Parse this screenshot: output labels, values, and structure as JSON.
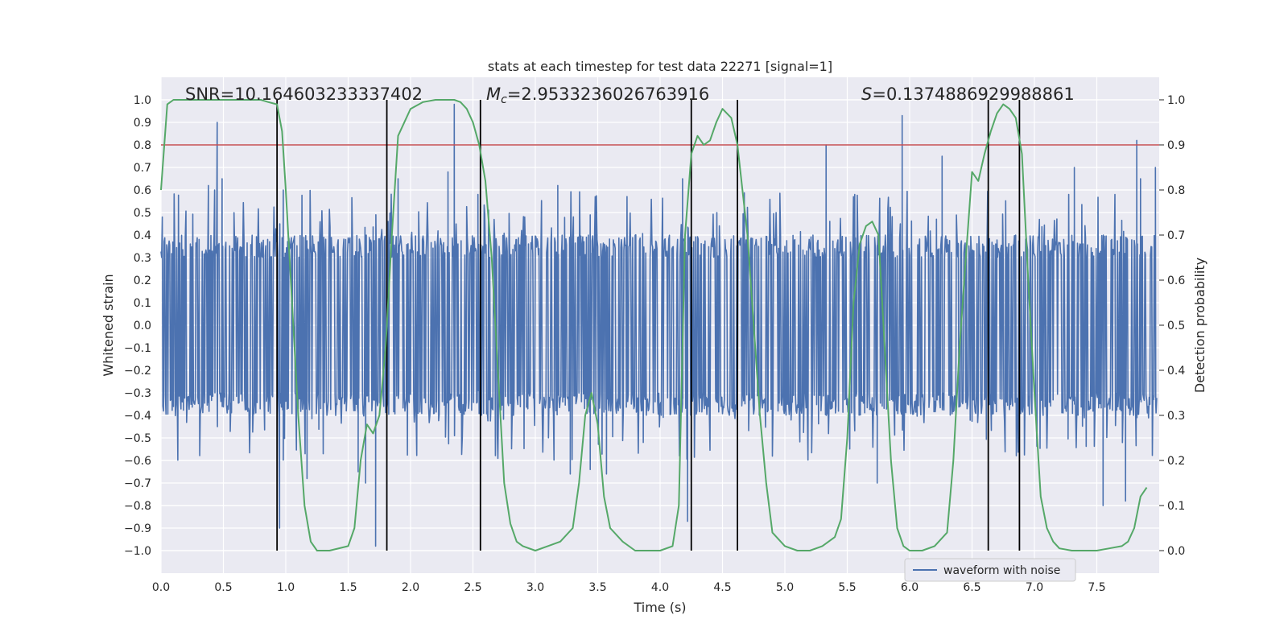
{
  "chart_data": {
    "type": "line",
    "title": "stats at each timestep for test data 22271 [signal=1]",
    "xlabel": "Time (s)",
    "ylabel": "Whitened strain",
    "y2label": "Detection probability",
    "xlim": [
      0.0,
      8.0
    ],
    "ylim": [
      -1.1,
      1.1
    ],
    "y2lim": [
      -0.05,
      1.05
    ],
    "xticks": [
      0.0,
      0.5,
      1.0,
      1.5,
      2.0,
      2.5,
      3.0,
      3.5,
      4.0,
      4.5,
      5.0,
      5.5,
      6.0,
      6.5,
      7.0,
      7.5
    ],
    "xtick_labels": [
      "0.0",
      "0.5",
      "1.0",
      "1.5",
      "2.0",
      "2.5",
      "3.0",
      "3.5",
      "4.0",
      "4.5",
      "5.0",
      "5.5",
      "6.0",
      "6.5",
      "7.0",
      "7.5"
    ],
    "yticks": [
      -1.0,
      -0.9,
      -0.8,
      -0.7,
      -0.6,
      -0.5,
      -0.4,
      -0.3,
      -0.2,
      -0.1,
      0.0,
      0.1,
      0.2,
      0.3,
      0.4,
      0.5,
      0.6,
      0.7,
      0.8,
      0.9,
      1.0
    ],
    "ytick_labels": [
      "−1.0",
      "−0.9",
      "−0.8",
      "−0.7",
      "−0.6",
      "−0.5",
      "−0.4",
      "−0.3",
      "−0.2",
      "−0.1",
      "0.0",
      "0.1",
      "0.2",
      "0.3",
      "0.4",
      "0.5",
      "0.6",
      "0.7",
      "0.8",
      "0.9",
      "1.0"
    ],
    "y2ticks": [
      0.0,
      0.1,
      0.2,
      0.3,
      0.4,
      0.5,
      0.6,
      0.7,
      0.8,
      0.9,
      1.0
    ],
    "y2tick_labels": [
      "0.0",
      "0.1",
      "0.2",
      "0.3",
      "0.4",
      "0.5",
      "0.6",
      "0.7",
      "0.8",
      "0.9",
      "1.0"
    ],
    "grid": true,
    "legend": {
      "position": "lower-right",
      "entries": [
        {
          "label": "waveform with noise",
          "color": "#4c72b0"
        }
      ]
    },
    "annotations": {
      "snr": {
        "text": "SNR=10.164603233337402"
      },
      "mc": {
        "symbol": "M",
        "subscript": "c",
        "text": "=2.9533236026763916"
      },
      "s": {
        "symbol": "S",
        "text": "=0.1374886929988861"
      }
    },
    "threshold": {
      "value": 0.9,
      "axis": "y2",
      "color": "#c44e52"
    },
    "event_lines": [
      0.93,
      1.81,
      2.56,
      4.25,
      4.62,
      6.63,
      6.88
    ],
    "event_line_color": "#000000",
    "waveform": {
      "name": "waveform with noise",
      "color": "#4c72b0",
      "noise_envelope": 0.4,
      "sample_spacing_s": 0.005,
      "spikes": [
        {
          "x": 0.45,
          "y": 0.9
        },
        {
          "x": 0.43,
          "y": 0.6
        },
        {
          "x": 0.49,
          "y": 0.65
        },
        {
          "x": 0.38,
          "y": 0.62
        },
        {
          "x": 0.95,
          "y": -0.9
        },
        {
          "x": 0.98,
          "y": 0.6
        },
        {
          "x": 1.17,
          "y": -0.68
        },
        {
          "x": 1.58,
          "y": -0.65
        },
        {
          "x": 1.64,
          "y": -0.7
        },
        {
          "x": 1.72,
          "y": -0.98
        },
        {
          "x": 1.9,
          "y": 0.65
        },
        {
          "x": 2.35,
          "y": 0.98
        },
        {
          "x": 2.3,
          "y": 0.68
        },
        {
          "x": 2.54,
          "y": 0.58
        },
        {
          "x": 3.28,
          "y": -0.66
        },
        {
          "x": 3.44,
          "y": -0.64
        },
        {
          "x": 3.57,
          "y": -0.66
        },
        {
          "x": 3.18,
          "y": 0.62
        },
        {
          "x": 4.22,
          "y": -0.87
        },
        {
          "x": 4.18,
          "y": 0.65
        },
        {
          "x": 5.33,
          "y": 0.8
        },
        {
          "x": 5.56,
          "y": 0.58
        },
        {
          "x": 5.94,
          "y": 0.93
        },
        {
          "x": 6.26,
          "y": 0.75
        },
        {
          "x": 5.74,
          "y": -0.7
        },
        {
          "x": 7.32,
          "y": 0.7
        },
        {
          "x": 7.55,
          "y": -0.8
        },
        {
          "x": 7.73,
          "y": -0.78
        },
        {
          "x": 7.82,
          "y": 0.82
        },
        {
          "x": 7.85,
          "y": 0.65
        },
        {
          "x": 7.97,
          "y": 0.7
        }
      ]
    },
    "probability": {
      "color": "#55a868",
      "axis": "y2",
      "x": [
        0.0,
        0.05,
        0.1,
        0.2,
        0.3,
        0.4,
        0.5,
        0.6,
        0.7,
        0.8,
        0.86,
        0.93,
        0.97,
        1.0,
        1.05,
        1.1,
        1.15,
        1.2,
        1.25,
        1.35,
        1.5,
        1.55,
        1.6,
        1.65,
        1.7,
        1.75,
        1.8,
        1.85,
        1.9,
        2.0,
        2.1,
        2.2,
        2.35,
        2.4,
        2.45,
        2.5,
        2.55,
        2.6,
        2.65,
        2.7,
        2.75,
        2.8,
        2.85,
        2.9,
        3.0,
        3.1,
        3.2,
        3.3,
        3.35,
        3.4,
        3.45,
        3.5,
        3.55,
        3.6,
        3.7,
        3.8,
        3.9,
        4.0,
        4.1,
        4.15,
        4.2,
        4.25,
        4.3,
        4.35,
        4.4,
        4.45,
        4.5,
        4.57,
        4.62,
        4.7,
        4.75,
        4.8,
        4.85,
        4.9,
        5.0,
        5.1,
        5.2,
        5.3,
        5.4,
        5.45,
        5.5,
        5.55,
        5.6,
        5.65,
        5.7,
        5.75,
        5.8,
        5.85,
        5.9,
        5.95,
        6.0,
        6.1,
        6.2,
        6.3,
        6.35,
        6.4,
        6.45,
        6.5,
        6.55,
        6.6,
        6.65,
        6.7,
        6.75,
        6.8,
        6.85,
        6.9,
        6.95,
        7.0,
        7.05,
        7.1,
        7.15,
        7.2,
        7.3,
        7.5,
        7.6,
        7.7,
        7.75,
        7.8,
        7.85,
        7.9
      ],
      "y": [
        0.8,
        0.99,
        1.0,
        1.0,
        1.0,
        1.0,
        1.0,
        1.0,
        1.0,
        1.0,
        0.995,
        0.99,
        0.93,
        0.8,
        0.55,
        0.3,
        0.1,
        0.02,
        0.0,
        0.0,
        0.01,
        0.05,
        0.2,
        0.28,
        0.26,
        0.3,
        0.45,
        0.7,
        0.92,
        0.98,
        0.995,
        1.0,
        1.0,
        0.995,
        0.98,
        0.95,
        0.9,
        0.82,
        0.65,
        0.4,
        0.15,
        0.06,
        0.02,
        0.01,
        0.0,
        0.01,
        0.02,
        0.05,
        0.15,
        0.3,
        0.35,
        0.28,
        0.12,
        0.05,
        0.02,
        0.0,
        0.0,
        0.0,
        0.01,
        0.1,
        0.7,
        0.88,
        0.92,
        0.9,
        0.91,
        0.95,
        0.98,
        0.96,
        0.9,
        0.7,
        0.5,
        0.3,
        0.15,
        0.04,
        0.01,
        0.0,
        0.0,
        0.01,
        0.03,
        0.07,
        0.25,
        0.55,
        0.68,
        0.72,
        0.73,
        0.7,
        0.45,
        0.2,
        0.05,
        0.01,
        0.0,
        0.0,
        0.01,
        0.04,
        0.2,
        0.45,
        0.65,
        0.84,
        0.82,
        0.88,
        0.93,
        0.97,
        0.99,
        0.98,
        0.96,
        0.88,
        0.6,
        0.35,
        0.12,
        0.05,
        0.02,
        0.005,
        0.0,
        0.0,
        0.005,
        0.01,
        0.02,
        0.05,
        0.12,
        0.14
      ]
    }
  }
}
